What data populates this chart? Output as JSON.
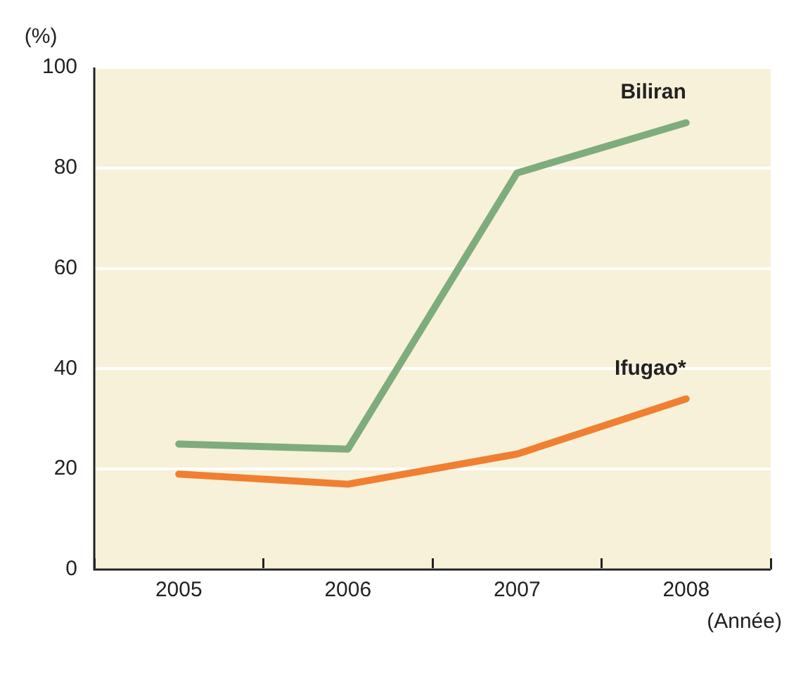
{
  "chart_data": {
    "type": "line",
    "ylabel": "(%)",
    "xlabel": "(Année)",
    "categories": [
      "2005",
      "2006",
      "2007",
      "2008"
    ],
    "series": [
      {
        "name": "Biliran",
        "color": "#7fac7c",
        "values": [
          25,
          24,
          79,
          89
        ]
      },
      {
        "name": "Ifugao*",
        "color": "#f07f32",
        "values": [
          19,
          17,
          23,
          34
        ]
      }
    ],
    "ylim": [
      0,
      100
    ],
    "yticks": [
      0,
      20,
      40,
      60,
      80,
      100
    ],
    "grid": "y",
    "legend": false,
    "marker": "none",
    "line_style": "solid"
  }
}
